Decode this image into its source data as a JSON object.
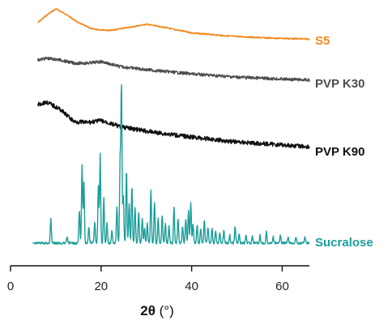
{
  "chart_data": {
    "type": "line",
    "xlabel_bold": "2θ",
    "xlabel_unit": " (°)",
    "xlim": [
      0,
      66
    ],
    "xticks": [
      "0",
      "20",
      "40",
      "60"
    ],
    "xtick_values": [
      0,
      20,
      40,
      60
    ],
    "yaxis": "none (curves vertically offset, arbitrary intensity)",
    "grid": false,
    "legend": "labels at right end of each curve",
    "series": [
      {
        "name": "S5",
        "color": "#f08a1c",
        "x_range": [
          6,
          66
        ],
        "profile": [
          [
            6,
            0.55
          ],
          [
            8,
            0.8
          ],
          [
            10,
            1.0
          ],
          [
            12,
            0.85
          ],
          [
            15,
            0.55
          ],
          [
            18,
            0.35
          ],
          [
            22,
            0.3
          ],
          [
            27,
            0.42
          ],
          [
            30,
            0.5
          ],
          [
            34,
            0.4
          ],
          [
            40,
            0.22
          ],
          [
            48,
            0.12
          ],
          [
            56,
            0.06
          ],
          [
            66,
            0.02
          ]
        ]
      },
      {
        "name": "PVP K30",
        "color": "#4d4d4d",
        "x_range": [
          6,
          66
        ],
        "profile": [
          [
            6,
            0.65
          ],
          [
            8,
            0.7
          ],
          [
            11,
            0.65
          ],
          [
            14,
            0.55
          ],
          [
            17,
            0.55
          ],
          [
            20,
            0.6
          ],
          [
            24,
            0.45
          ],
          [
            30,
            0.35
          ],
          [
            40,
            0.22
          ],
          [
            50,
            0.12
          ],
          [
            60,
            0.06
          ],
          [
            66,
            0.03
          ]
        ]
      },
      {
        "name": "PVP K90",
        "color": "#111111",
        "x_range": [
          6,
          66
        ],
        "profile": [
          [
            6,
            0.95
          ],
          [
            8,
            1.0
          ],
          [
            11,
            0.85
          ],
          [
            14,
            0.6
          ],
          [
            17,
            0.58
          ],
          [
            20,
            0.62
          ],
          [
            24,
            0.5
          ],
          [
            30,
            0.4
          ],
          [
            40,
            0.28
          ],
          [
            50,
            0.18
          ],
          [
            60,
            0.12
          ],
          [
            66,
            0.08
          ]
        ]
      },
      {
        "name": "Sucralose",
        "color": "#1a9e9a",
        "x_range": [
          5,
          66
        ],
        "peaks": [
          [
            8.9,
            30
          ],
          [
            12.5,
            8
          ],
          [
            15.2,
            40
          ],
          [
            15.8,
            95
          ],
          [
            16.2,
            75
          ],
          [
            17.3,
            20
          ],
          [
            18.6,
            25
          ],
          [
            19.4,
            70
          ],
          [
            19.8,
            110
          ],
          [
            20.6,
            55
          ],
          [
            21.3,
            25
          ],
          [
            22.4,
            15
          ],
          [
            23.5,
            45
          ],
          [
            24.2,
            100
          ],
          [
            24.5,
            195
          ],
          [
            24.9,
            60
          ],
          [
            25.6,
            90
          ],
          [
            26.2,
            50
          ],
          [
            26.8,
            70
          ],
          [
            27.5,
            45
          ],
          [
            28.3,
            38
          ],
          [
            29.1,
            30
          ],
          [
            29.6,
            18
          ],
          [
            30.2,
            25
          ],
          [
            31.0,
            65
          ],
          [
            31.8,
            50
          ],
          [
            32.6,
            30
          ],
          [
            33.5,
            35
          ],
          [
            34.2,
            25
          ],
          [
            35.0,
            22
          ],
          [
            36.1,
            45
          ],
          [
            37.0,
            30
          ],
          [
            38.0,
            20
          ],
          [
            38.7,
            30
          ],
          [
            39.3,
            40
          ],
          [
            39.8,
            50
          ],
          [
            40.3,
            25
          ],
          [
            41.2,
            22
          ],
          [
            42.0,
            18
          ],
          [
            42.8,
            28
          ],
          [
            43.6,
            20
          ],
          [
            44.5,
            18
          ],
          [
            45.3,
            15
          ],
          [
            46.2,
            12
          ],
          [
            47.1,
            15
          ],
          [
            48.4,
            10
          ],
          [
            49.6,
            20
          ],
          [
            50.5,
            12
          ],
          [
            52.0,
            10
          ],
          [
            53.4,
            8
          ],
          [
            55.1,
            10
          ],
          [
            56.5,
            14
          ],
          [
            58.0,
            8
          ],
          [
            59.6,
            10
          ],
          [
            61.3,
            8
          ],
          [
            63.0,
            7
          ],
          [
            65.0,
            8
          ]
        ]
      }
    ]
  }
}
